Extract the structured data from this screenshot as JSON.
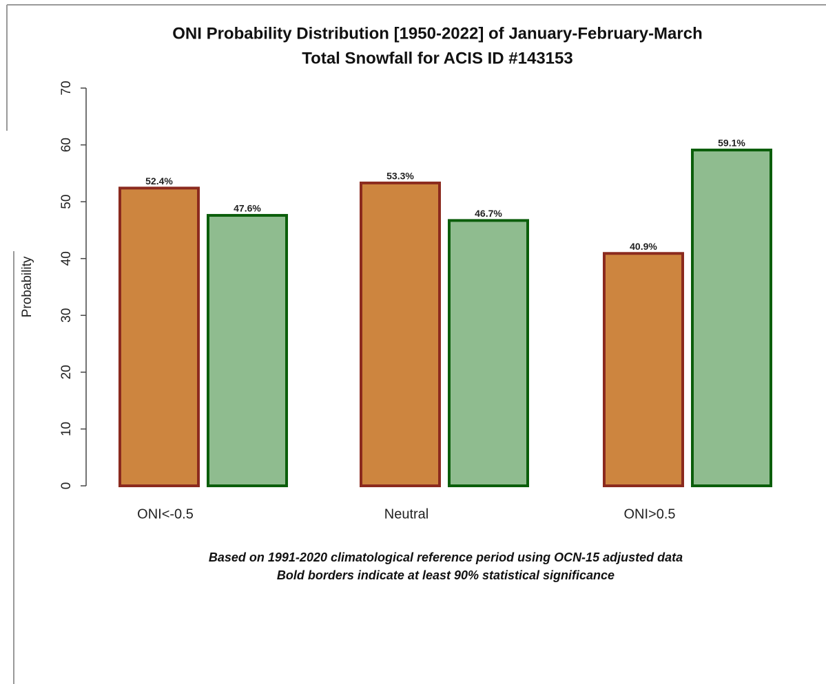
{
  "chart_data": {
    "type": "bar",
    "title": [
      "ONI Probability Distribution [1950-2022] of January-February-March",
      "Total Snowfall  for ACIS ID #143153"
    ],
    "y_label": "Probability",
    "categories": [
      "ONI<-0.5",
      "Neutral",
      "ONI>0.5"
    ],
    "series": [
      {
        "color": "#cd853f",
        "border_color": "#8b2a1e",
        "values": [
          52.4,
          53.3,
          40.9
        ],
        "value_labels": [
          "52.4%",
          "53.3%",
          "40.9%"
        ]
      },
      {
        "color": "#8fbc8f",
        "border_color": "#0b5e0b",
        "values": [
          47.6,
          46.7,
          59.1
        ],
        "value_labels": [
          "47.6%",
          "46.7%",
          "59.1%"
        ]
      }
    ],
    "ylim": [
      0,
      70
    ],
    "yticks": [
      0,
      10,
      20,
      30,
      40,
      50,
      60,
      70
    ],
    "footnote": [
      "Based on 1991-2020 climatological reference period using OCN-15 adjusted data",
      "Bold borders indicate at least 90% statistical significance"
    ]
  }
}
